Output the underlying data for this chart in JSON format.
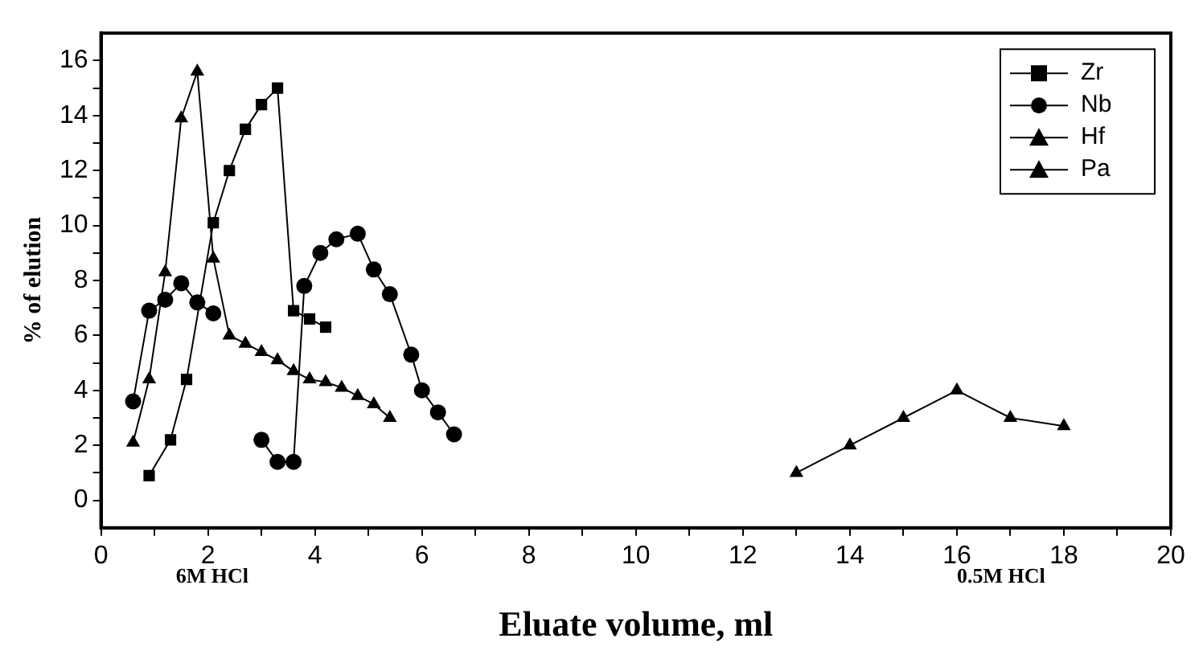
{
  "chart_data": {
    "type": "line",
    "xlabel": "Eluate volume, ml",
    "ylabel": "% of elution",
    "annotations": [
      "6M HCl",
      "0.5M HCl"
    ],
    "xlim": [
      0,
      20
    ],
    "ylim": [
      -1,
      17
    ],
    "xticks": [
      0,
      {
        "value": 1,
        "label": null
      },
      2,
      {
        "value": 3,
        "label": null
      },
      4,
      {
        "value": 5,
        "label": null
      },
      6,
      {
        "value": 7,
        "label": null
      },
      8,
      {
        "value": 9,
        "label": null
      },
      10,
      {
        "value": 11,
        "label": null
      },
      12,
      {
        "value": 13,
        "label": null
      },
      14,
      {
        "value": 15,
        "label": null
      },
      16,
      {
        "value": 17,
        "label": null
      },
      18,
      {
        "value": 19,
        "label": null
      },
      20
    ],
    "yticks": [
      0,
      {
        "value": 1,
        "label": null
      },
      2,
      {
        "value": 3,
        "label": null
      },
      4,
      {
        "value": 5,
        "label": null
      },
      6,
      {
        "value": 7,
        "label": null
      },
      8,
      {
        "value": 9,
        "label": null
      },
      10,
      {
        "value": 11,
        "label": null
      },
      12,
      {
        "value": 13,
        "label": null
      },
      14,
      {
        "value": 15,
        "label": null
      },
      16
    ],
    "grid": false,
    "legend": "top right",
    "line_style": "solid",
    "series": [
      {
        "name": "Zr",
        "color": "#000000",
        "marker": "square",
        "x": [
          0.9,
          1.3,
          1.6,
          2.1,
          2.4,
          2.7,
          3.0,
          3.3,
          3.6,
          3.9,
          4.2
        ],
        "values": [
          0.9,
          2.2,
          4.4,
          10.1,
          12.0,
          13.5,
          14.4,
          15.0,
          6.9,
          6.6,
          6.3
        ]
      },
      {
        "name": "Nb",
        "color": "#000000",
        "marker": "circle",
        "x": [
          0.6,
          0.9,
          1.2,
          1.5,
          1.8,
          2.1,
          2.5,
          3.0,
          3.3,
          3.6,
          3.8,
          4.1,
          4.4,
          4.8,
          5.1,
          5.4,
          5.8,
          6.0,
          6.3,
          6.6
        ],
        "values": [
          3.6,
          6.9,
          7.3,
          7.9,
          7.2,
          6.8,
          null,
          2.2,
          1.4,
          1.4,
          7.8,
          9.0,
          9.5,
          9.7,
          8.4,
          7.5,
          5.3,
          4.0,
          3.2,
          2.4
        ]
      },
      {
        "name": "Hf",
        "color": "#000000",
        "marker": "triangle",
        "x": [
          0.6,
          0.9,
          1.2,
          1.5,
          1.8,
          2.1,
          2.4,
          2.7,
          3.0,
          3.3,
          3.6,
          3.9,
          4.2,
          4.5,
          4.8,
          5.1,
          5.4
        ],
        "values": [
          2.1,
          4.4,
          8.3,
          13.9,
          15.6,
          8.8,
          6.0,
          5.7,
          5.4,
          5.1,
          4.7,
          4.4,
          4.3,
          4.1,
          3.8,
          3.5,
          3.0
        ]
      },
      {
        "name": "Pa",
        "color": "#000000",
        "marker": "triangle",
        "x": [
          13,
          14,
          15,
          16,
          17,
          18
        ],
        "values": [
          1.0,
          2.0,
          3.0,
          4.0,
          3.0,
          2.7
        ]
      }
    ]
  }
}
